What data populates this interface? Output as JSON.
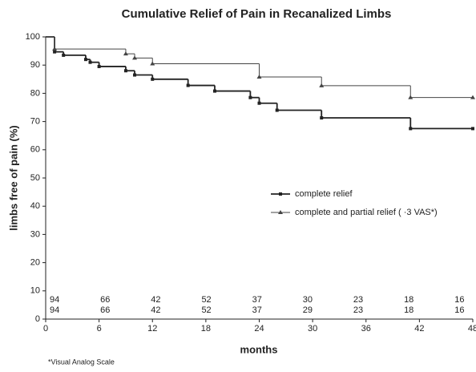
{
  "chart_data": {
    "type": "step",
    "title": "Cumulative Relief of Pain in Recanalized Limbs",
    "x_label": "months",
    "y_label": "limbs free of pain (%)",
    "footnote": "*Visual Analog Scale",
    "xlim": [
      0,
      48
    ],
    "xticks": [
      0,
      6,
      12,
      18,
      24,
      30,
      36,
      42,
      48
    ],
    "ylim": [
      0,
      100
    ],
    "yticks": [
      0,
      10,
      20,
      30,
      40,
      50,
      60,
      70,
      80,
      90,
      100
    ],
    "series": [
      {
        "name": "complete relief",
        "color": "#222222",
        "marker": "square",
        "x": [
          0,
          1,
          2,
          4.5,
          5,
          6,
          9,
          10,
          12,
          16,
          19,
          23,
          24,
          26,
          31,
          41,
          48
        ],
        "values": [
          100,
          94.7,
          93.5,
          92,
          91,
          89.5,
          88,
          86.5,
          85,
          82.8,
          80.8,
          78.5,
          76.5,
          74,
          71.3,
          67.5,
          67.5
        ]
      },
      {
        "name": "complete and partial relief ( ·3 VAS*)",
        "color": "#444444",
        "marker": "triangle",
        "x": [
          0,
          1,
          9,
          10,
          12,
          24,
          31,
          41,
          48
        ],
        "values": [
          100,
          95.7,
          94,
          92.5,
          90.5,
          85.8,
          82.7,
          78.5,
          78.5
        ]
      }
    ],
    "at_risk": [
      [
        94,
        66,
        42,
        52,
        37,
        30,
        23,
        18,
        16
      ],
      [
        94,
        66,
        42,
        52,
        37,
        29,
        23,
        18,
        16
      ]
    ]
  }
}
